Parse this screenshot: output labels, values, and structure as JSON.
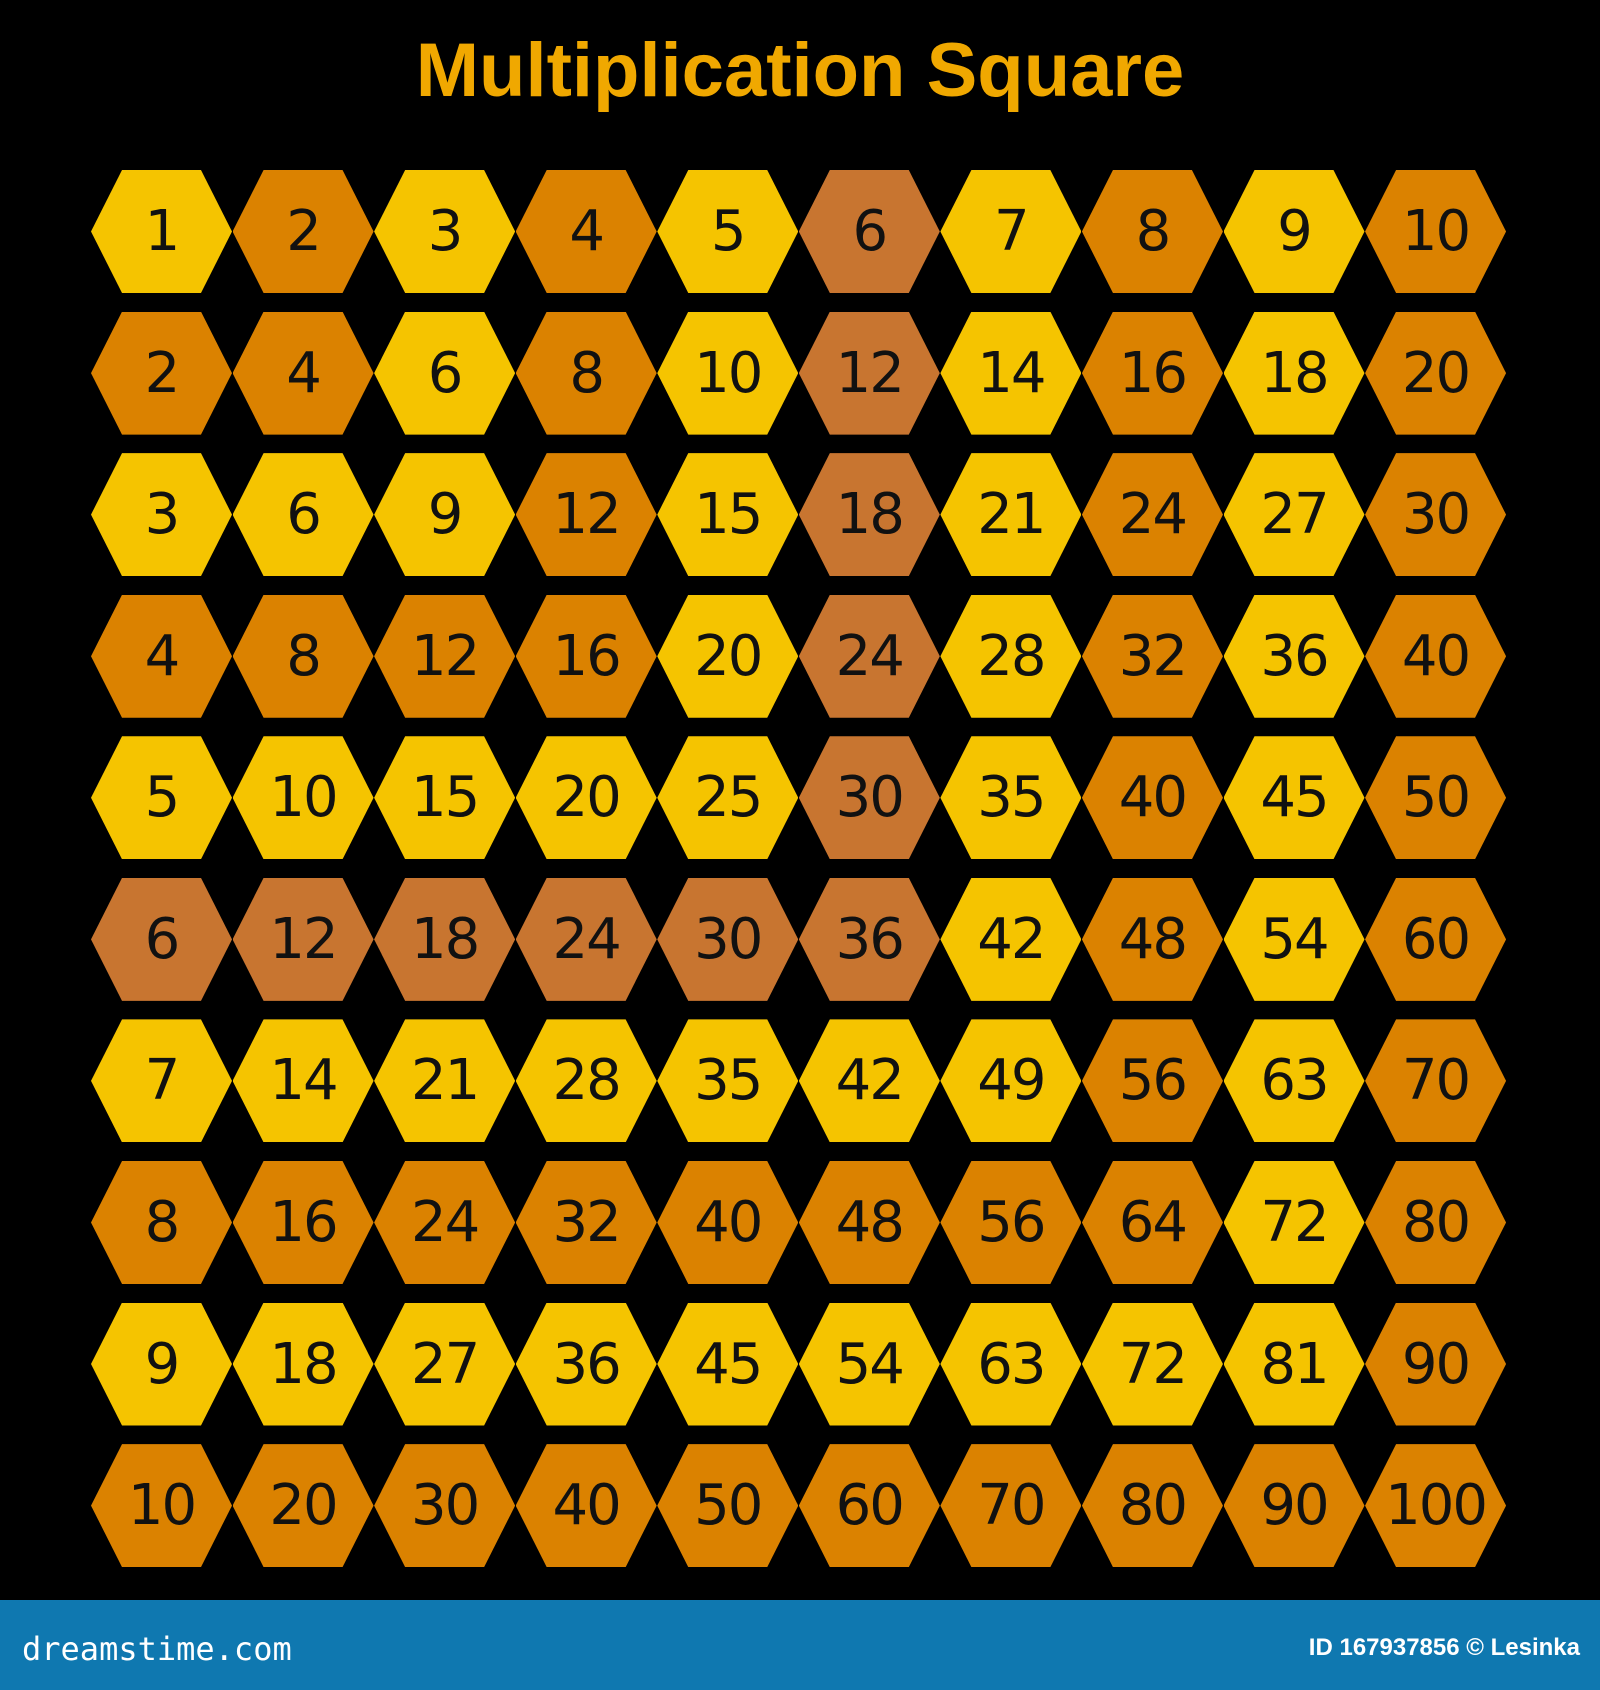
{
  "title": "Multiplication Square",
  "title_color": "#f0a800",
  "palette": {
    "yellow": "#f5c400",
    "orange": "#db8200",
    "brown": "#c87530"
  },
  "color_by_factor": [
    "yellow",
    "orange",
    "yellow",
    "orange",
    "yellow",
    "brown",
    "yellow",
    "orange",
    "yellow",
    "orange"
  ],
  "grid": [
    [
      1,
      2,
      3,
      4,
      5,
      6,
      7,
      8,
      9,
      10
    ],
    [
      2,
      4,
      6,
      8,
      10,
      12,
      14,
      16,
      18,
      20
    ],
    [
      3,
      6,
      9,
      12,
      15,
      18,
      21,
      24,
      27,
      30
    ],
    [
      4,
      8,
      12,
      16,
      20,
      24,
      28,
      32,
      36,
      40
    ],
    [
      5,
      10,
      15,
      20,
      25,
      30,
      35,
      40,
      45,
      50
    ],
    [
      6,
      12,
      18,
      24,
      30,
      36,
      42,
      48,
      54,
      60
    ],
    [
      7,
      14,
      21,
      28,
      35,
      42,
      49,
      56,
      63,
      70
    ],
    [
      8,
      16,
      24,
      32,
      40,
      48,
      56,
      64,
      72,
      80
    ],
    [
      9,
      18,
      27,
      36,
      45,
      54,
      63,
      72,
      81,
      90
    ],
    [
      10,
      20,
      30,
      40,
      50,
      60,
      70,
      80,
      90,
      100
    ]
  ],
  "footer": {
    "brand": "dreamstime.com",
    "credit": "ID 167937856 © Lesinka"
  }
}
